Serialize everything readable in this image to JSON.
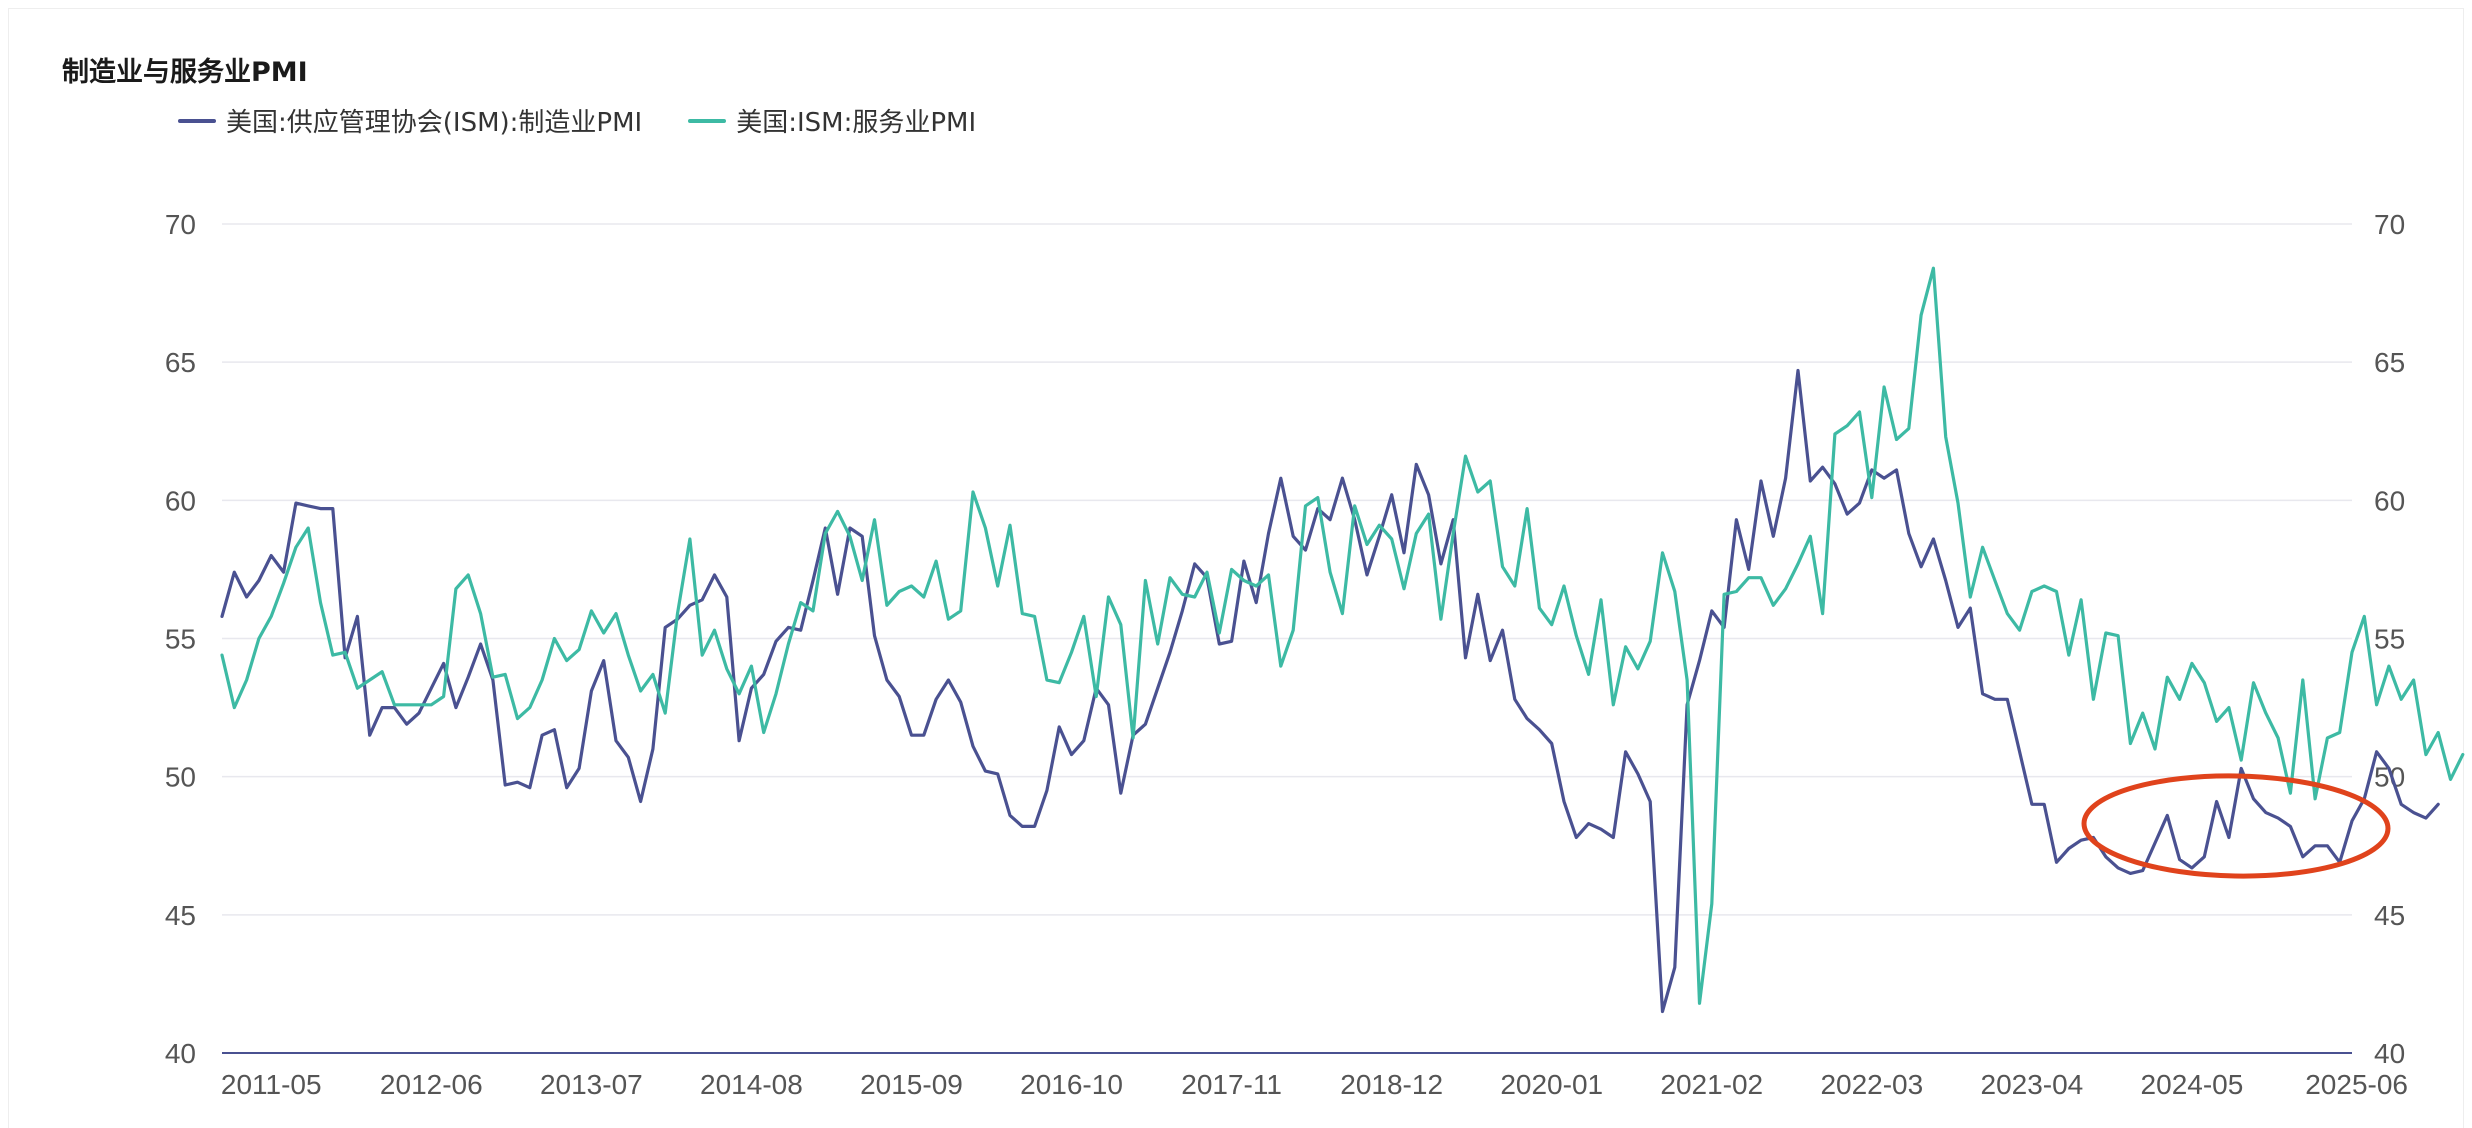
{
  "chart_data": {
    "type": "line",
    "title": "制造业与服务业PMI",
    "x_tick_labels": [
      "2011-05",
      "2012-06",
      "2013-07",
      "2014-08",
      "2015-09",
      "2016-10",
      "2017-11",
      "2018-12",
      "2020-01",
      "2021-02",
      "2022-03",
      "2023-04",
      "2024-05",
      "2025-06"
    ],
    "x_start": "2011-01",
    "x_end": "2025-06",
    "y_left": {
      "min": 40,
      "max": 70,
      "ticks": [
        40,
        45,
        50,
        55,
        60,
        65,
        70
      ]
    },
    "y_right": {
      "min": 40,
      "max": 70,
      "ticks": [
        40,
        45,
        50,
        55,
        60,
        65,
        70
      ]
    },
    "grid": true,
    "legend_position": "top-left",
    "series": [
      {
        "name": "美国:供应管理协会(ISM):制造业PMI",
        "color": "#4a5191",
        "start": "2011-01",
        "values": [
          55.8,
          57.4,
          56.5,
          57.1,
          58.0,
          57.4,
          59.9,
          59.8,
          59.7,
          59.7,
          54.3,
          55.8,
          51.5,
          52.5,
          52.5,
          51.9,
          52.3,
          53.2,
          54.1,
          52.5,
          53.6,
          54.8,
          53.5,
          49.7,
          49.8,
          49.6,
          51.5,
          51.7,
          49.6,
          50.3,
          53.1,
          54.2,
          51.3,
          50.7,
          49.1,
          51.0,
          55.4,
          55.7,
          56.2,
          56.4,
          57.3,
          56.5,
          51.3,
          53.2,
          53.7,
          54.9,
          55.4,
          55.3,
          57.1,
          59.0,
          56.6,
          59.0,
          58.7,
          55.1,
          53.5,
          52.9,
          51.5,
          51.5,
          52.8,
          53.5,
          52.7,
          51.1,
          50.2,
          50.1,
          48.6,
          48.2,
          48.2,
          49.5,
          51.8,
          50.8,
          51.3,
          53.2,
          52.6,
          49.4,
          51.5,
          51.9,
          53.2,
          54.5,
          56.0,
          57.7,
          57.2,
          54.8,
          54.9,
          57.8,
          56.3,
          58.8,
          60.8,
          58.7,
          58.2,
          59.7,
          59.3,
          60.8,
          59.3,
          57.3,
          58.7,
          60.2,
          58.1,
          61.3,
          60.2,
          57.7,
          59.3,
          54.3,
          56.6,
          54.2,
          55.3,
          52.8,
          52.1,
          51.7,
          51.2,
          49.1,
          47.8,
          48.3,
          48.1,
          47.8,
          50.9,
          50.1,
          49.1,
          41.5,
          43.1,
          52.6,
          54.2,
          56.0,
          55.4,
          59.3,
          57.5,
          60.7,
          58.7,
          60.8,
          64.7,
          60.7,
          61.2,
          60.6,
          59.5,
          59.9,
          61.1,
          60.8,
          61.1,
          58.8,
          57.6,
          58.6,
          57.1,
          55.4,
          56.1,
          53.0,
          52.8,
          52.8,
          50.9,
          49.0,
          49.0,
          46.9,
          47.4,
          47.7,
          47.8,
          47.1,
          46.7,
          46.5,
          46.6,
          47.6,
          48.6,
          47.0,
          46.7,
          47.1,
          49.1,
          47.8,
          50.3,
          49.2,
          48.7,
          48.5,
          48.2,
          47.1,
          47.5,
          47.5,
          46.9,
          48.4,
          49.2,
          50.9,
          50.3,
          49.0,
          48.7,
          48.5,
          49.0
        ]
      },
      {
        "name": "美国:ISM:服务业PMI",
        "color": "#3dbaa4",
        "start": "2011-01",
        "values": [
          54.4,
          52.5,
          53.5,
          55.0,
          55.8,
          57.0,
          58.3,
          59.0,
          56.3,
          54.4,
          54.5,
          53.2,
          53.5,
          53.8,
          52.6,
          52.6,
          52.6,
          52.6,
          52.9,
          56.8,
          57.3,
          55.9,
          53.6,
          53.7,
          52.1,
          52.5,
          53.5,
          55.0,
          54.2,
          54.6,
          56.0,
          55.2,
          55.9,
          54.4,
          53.1,
          53.7,
          52.3,
          55.9,
          58.6,
          54.4,
          55.3,
          53.9,
          53.0,
          54.0,
          51.6,
          53.0,
          54.8,
          56.3,
          56.0,
          58.8,
          59.6,
          58.7,
          57.1,
          59.3,
          56.2,
          56.7,
          56.9,
          56.5,
          57.8,
          55.7,
          56.0,
          60.3,
          59.0,
          56.9,
          59.1,
          55.9,
          55.8,
          53.5,
          53.4,
          54.5,
          55.8,
          52.9,
          56.5,
          55.5,
          51.4,
          57.1,
          54.8,
          57.2,
          56.6,
          56.5,
          57.4,
          55.2,
          57.5,
          57.1,
          56.9,
          57.3,
          54.0,
          55.3,
          59.8,
          60.1,
          57.4,
          55.9,
          59.8,
          58.4,
          59.1,
          58.6,
          56.8,
          58.8,
          59.5,
          55.7,
          58.8,
          61.6,
          60.3,
          60.7,
          57.6,
          56.9,
          59.7,
          56.1,
          55.5,
          56.9,
          55.1,
          53.7,
          56.4,
          52.6,
          54.7,
          53.9,
          54.9,
          58.1,
          56.7,
          53.5,
          41.8,
          45.4,
          56.6,
          56.7,
          57.2,
          57.2,
          56.2,
          56.8,
          57.7,
          58.7,
          55.9,
          62.4,
          62.7,
          63.2,
          60.1,
          64.1,
          62.2,
          62.6,
          66.7,
          68.4,
          62.3,
          59.9,
          56.5,
          58.3,
          57.1,
          55.9,
          55.3,
          56.7,
          56.9,
          56.7,
          54.4,
          56.4,
          52.8,
          55.2,
          55.1,
          51.2,
          52.3,
          51.0,
          53.6,
          52.8,
          54.1,
          53.4,
          52.0,
          52.5,
          50.6,
          53.4,
          52.3,
          51.4,
          49.4,
          53.5,
          49.2,
          51.4,
          51.6,
          54.5,
          55.8,
          52.6,
          54.0,
          52.8,
          53.5,
          50.8,
          51.6,
          49.9,
          50.8
        ]
      }
    ]
  }
}
